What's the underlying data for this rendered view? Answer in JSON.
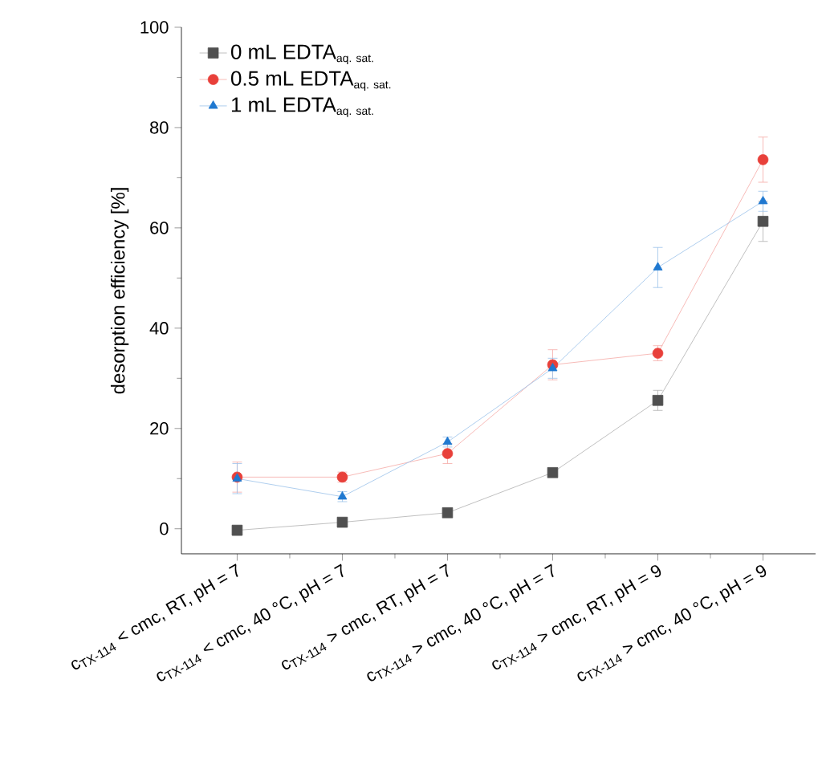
{
  "chart_data": {
    "type": "line",
    "ylabel": "desorption efficiency [%]",
    "categories": [
      "c$_{TX-114}$ < cmc, RT, pH = 7",
      "c$_{TX-114}$ < cmc, 40 °C, pH = 7",
      "c$_{TX-114}$ > cmc, RT, pH = 7",
      "c$_{TX-114}$ > cmc, 40 °C, pH = 7",
      "c$_{TX-114}$ > cmc, RT, pH = 9",
      "c$_{TX-114}$ > cmc, 40 °C, pH = 9"
    ],
    "series": [
      {
        "name": "\\mbox{0 mL EDTA}_{\\mbox{\\scriptsize aq. sat.}}",
        "color": "#505050",
        "marker": "square",
        "values": [
          -0.3,
          1.3,
          3.2,
          11.2,
          25.6,
          61.3
        ],
        "errors": [
          1,
          0.5,
          0.5,
          0.5,
          2,
          4
        ]
      },
      {
        "name": "\\mbox{0.5 mL EDTA}_{\\mbox{\\scriptsize aq. sat.}}",
        "color": "#e8403a",
        "marker": "circle",
        "values": [
          10.3,
          10.3,
          15.0,
          32.7,
          35.0,
          73.6
        ],
        "errors": [
          3,
          1,
          2,
          3,
          1.5,
          4.5
        ]
      },
      {
        "name": "\\mbox{1 mL EDTA}_{\\mbox{\\scriptsize aq. sat.}}",
        "color": "#1f78d0",
        "marker": "triangle",
        "values": [
          10.0,
          6.4,
          17.3,
          32.0,
          52.1,
          65.3
        ],
        "errors": [
          3,
          1,
          1,
          2,
          4,
          2
        ]
      }
    ],
    "ylim": [
      -5,
      100
    ],
    "yticks": [
      0,
      20,
      40,
      60,
      80,
      100
    ],
    "grid": false,
    "legend": "top left"
  }
}
